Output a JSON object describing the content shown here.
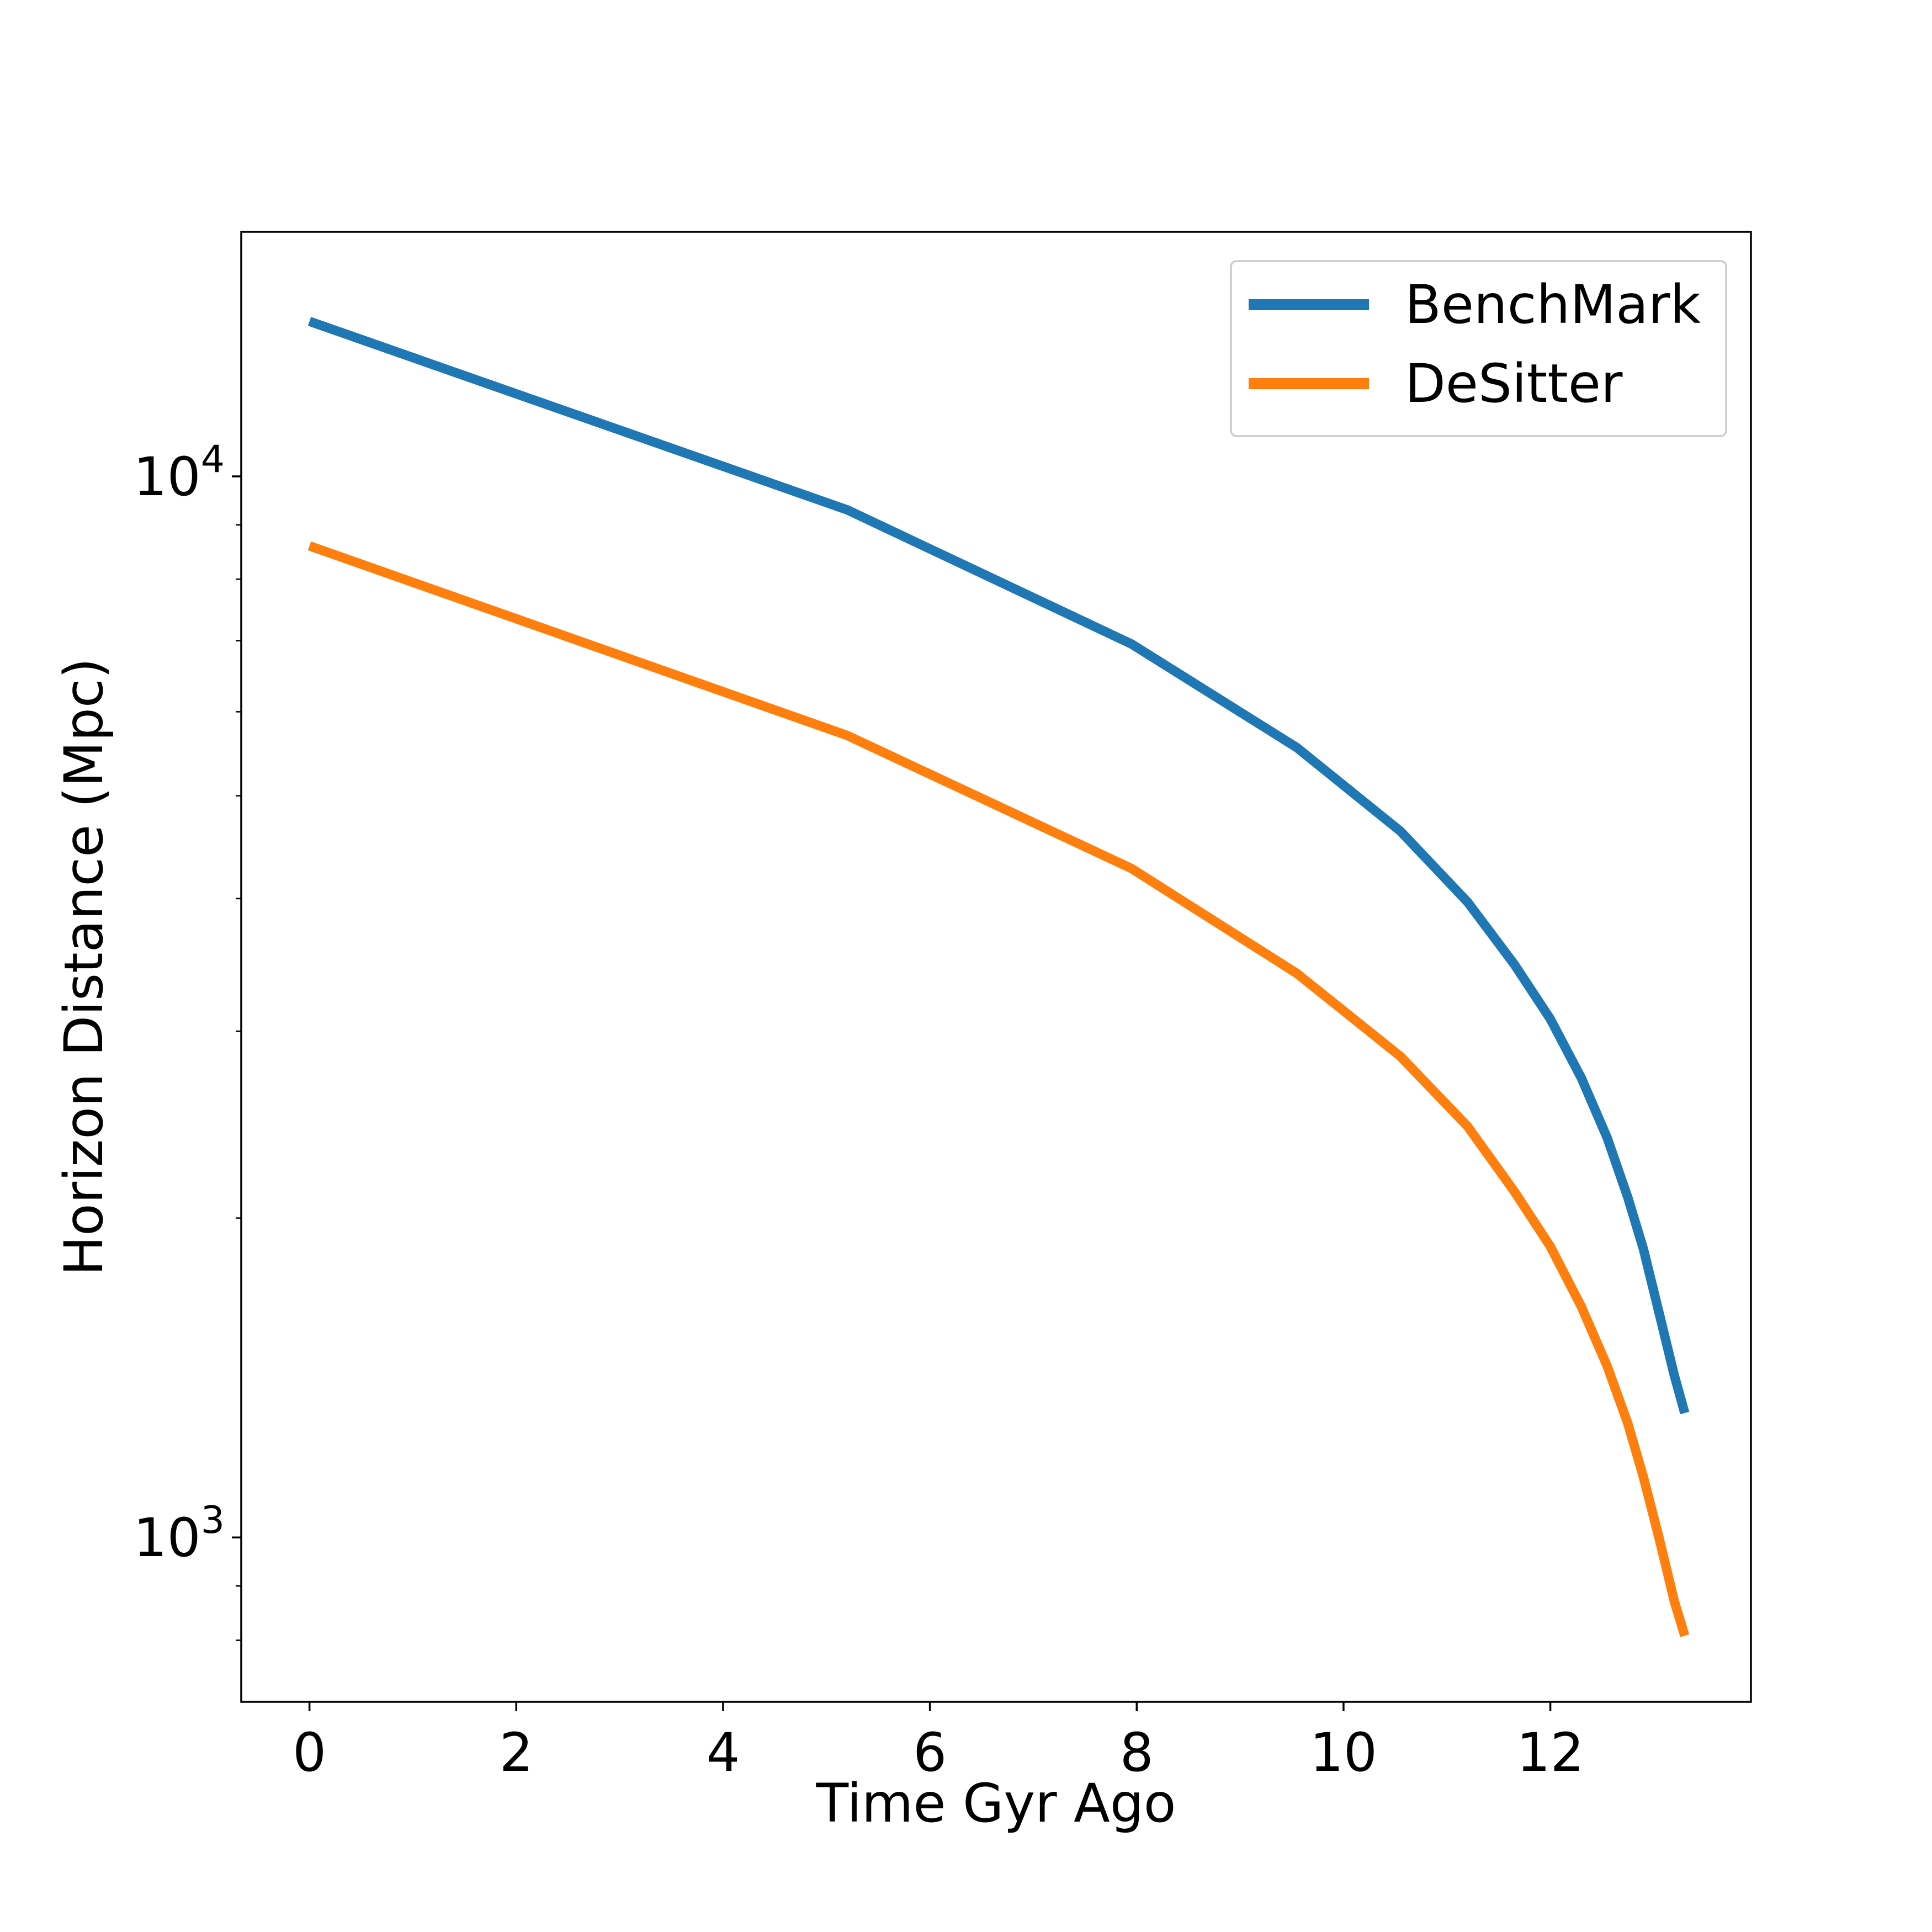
{
  "chart_data": {
    "type": "line",
    "title": "",
    "xlabel": "Time Gyr Ago",
    "ylabel": "Horizon Distance (Mpc)",
    "xlim": [
      -0.66,
      13.94
    ],
    "ylim": [
      700,
      17000
    ],
    "yscale": "log",
    "grid": false,
    "legend_position": "top-right",
    "x_ticks": [
      {
        "value": 0,
        "label": "0"
      },
      {
        "value": 2,
        "label": "2"
      },
      {
        "value": 4,
        "label": "4"
      },
      {
        "value": 6,
        "label": "6"
      },
      {
        "value": 8,
        "label": "8"
      },
      {
        "value": 10,
        "label": "10"
      },
      {
        "value": 12,
        "label": "12"
      }
    ],
    "y_major_ticks": [
      {
        "value": 1000,
        "base": "10",
        "exp": "3"
      },
      {
        "value": 10000,
        "base": "10",
        "exp": "4"
      }
    ],
    "y_minor_ticks": [
      800,
      900,
      2000,
      3000,
      4000,
      5000,
      6000,
      7000,
      8000,
      9000
    ],
    "series": [
      {
        "name": "BenchMark",
        "color": "#1f77b4",
        "x": [
          0,
          5.2,
          7.95,
          9.55,
          10.55,
          11.2,
          11.65,
          12.0,
          12.3,
          12.55,
          12.75,
          12.9,
          13.05,
          13.2,
          13.3
        ],
        "y": [
          14000,
          9300,
          6950,
          5550,
          4630,
          3970,
          3470,
          3080,
          2710,
          2380,
          2090,
          1870,
          1630,
          1420,
          1310
        ]
      },
      {
        "name": "DeSitter",
        "color": "#ff7f0e",
        "x": [
          0,
          5.2,
          7.95,
          9.55,
          10.55,
          11.2,
          11.65,
          12.0,
          12.3,
          12.55,
          12.75,
          12.9,
          13.05,
          13.2,
          13.3
        ],
        "y": [
          8600,
          5700,
          4270,
          3400,
          2840,
          2440,
          2120,
          1880,
          1650,
          1450,
          1280,
          1140,
          1000,
          870,
          808
        ]
      }
    ]
  }
}
